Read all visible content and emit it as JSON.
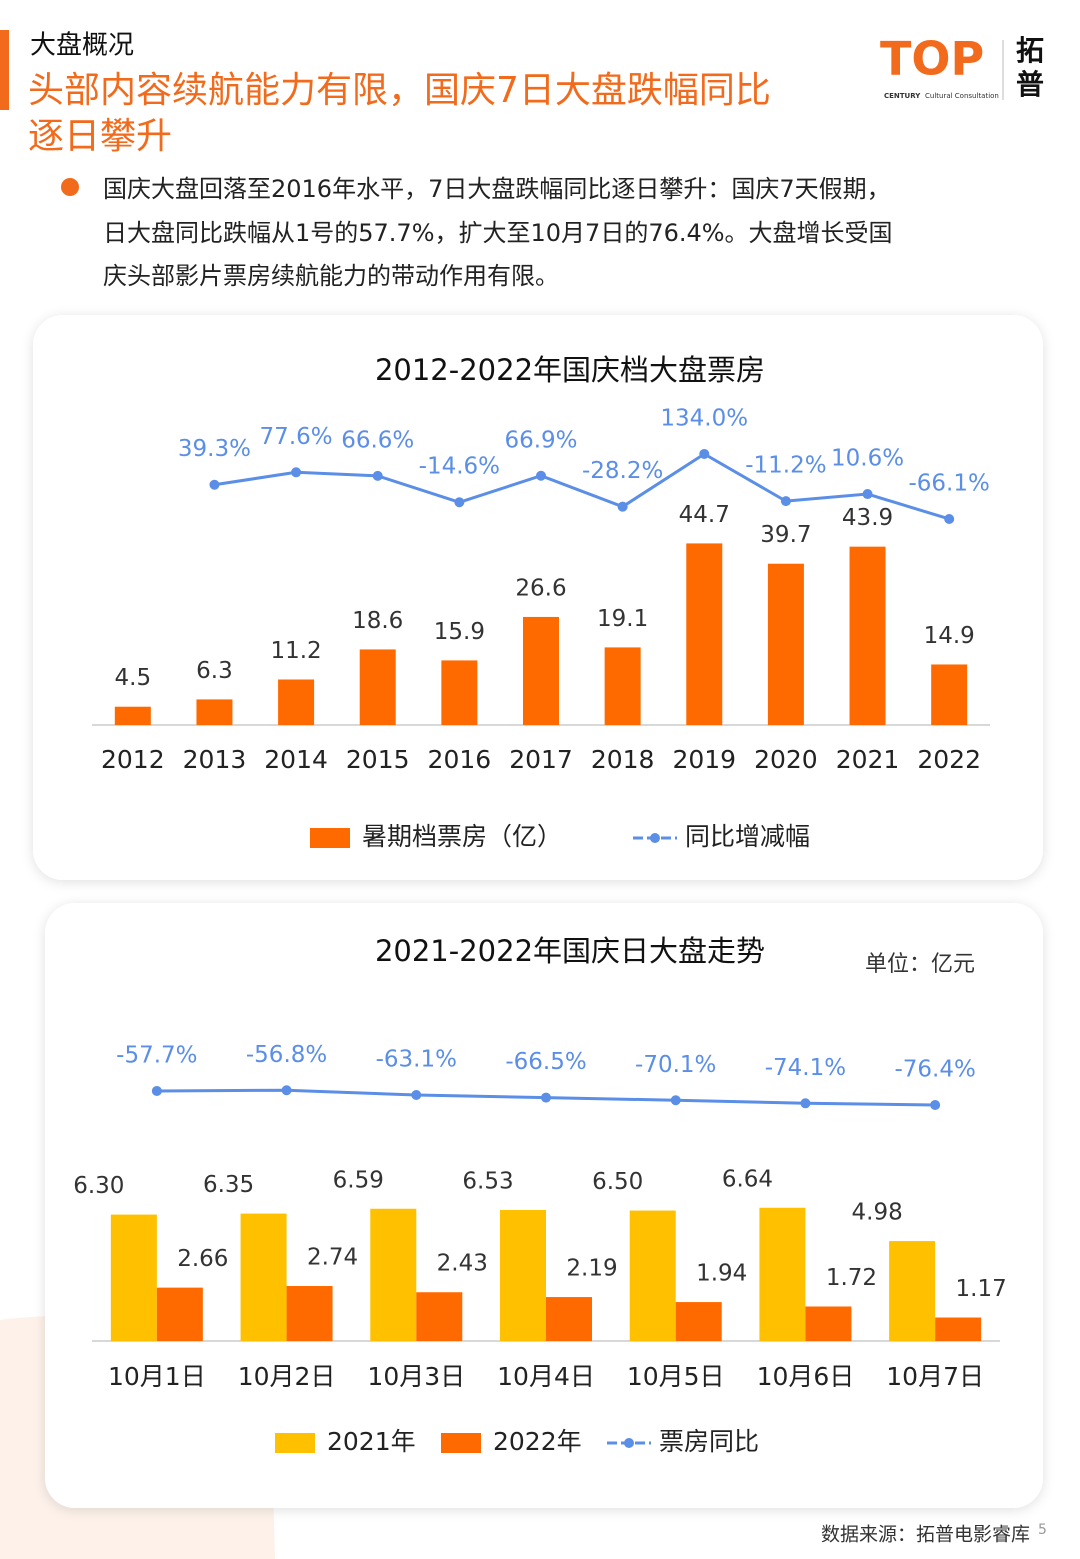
{
  "header": {
    "section": "大盘概况",
    "title_lines": [
      "头部内容续航能力有限，国庆7日大盘跌幅同比",
      "逐日攀升"
    ],
    "bullet_lines": [
      "国庆大盘回落至2016年水平，7日大盘跌幅同比逐日攀升：国庆7天假期，",
      "日大盘同比跌幅从1号的57.7%，扩大至10月7日的76.4%。大盘增长受国",
      "庆头部影片票房续航能力的带动作用有限。"
    ]
  },
  "logo": {
    "mark": "TOP",
    "name_lines": [
      "拓",
      "普"
    ],
    "tagline": "CENTURY",
    "tagline2": "Cultural Consultation"
  },
  "footer": {
    "source": "数据来源：拓普电影睿库",
    "page": 5
  },
  "chart_data": [
    {
      "type": "bar",
      "title": "2012-2022年国庆档大盘票房",
      "categories": [
        "2012",
        "2013",
        "2014",
        "2015",
        "2016",
        "2017",
        "2018",
        "2019",
        "2020",
        "2021",
        "2022"
      ],
      "series": [
        {
          "name": "暑期档票房（亿）",
          "type": "bar",
          "color": "#ff6a00",
          "values": [
            4.5,
            6.3,
            11.2,
            18.6,
            15.9,
            26.6,
            19.1,
            44.7,
            39.7,
            43.9,
            14.9
          ]
        },
        {
          "name": "同比增减幅",
          "type": "line",
          "axis": "y2",
          "color": "#5b8ee6",
          "values": [
            null,
            39.3,
            77.6,
            66.6,
            -14.6,
            66.9,
            -28.2,
            134.0,
            -11.2,
            10.6,
            -66.1
          ],
          "value_labels": [
            null,
            "39.3%",
            "77.6%",
            "66.6%",
            "-14.6%",
            "66.9%",
            "-28.2%",
            "134.0%",
            "-11.2%",
            "10.6%",
            "-66.1%"
          ]
        }
      ],
      "ylim": [
        0,
        80
      ],
      "y2lim": [
        -700,
        300
      ],
      "legend": "bottom"
    },
    {
      "type": "bar",
      "title": "2021-2022年国庆日大盘走势",
      "note": "单位：亿元",
      "categories": [
        "10月1日",
        "10月2日",
        "10月3日",
        "10月4日",
        "10月5日",
        "10月6日",
        "10月7日"
      ],
      "series": [
        {
          "name": "2021年",
          "type": "bar",
          "color": "#ffc000",
          "values": [
            6.3,
            6.35,
            6.59,
            6.53,
            6.5,
            6.64,
            4.98
          ],
          "value_labels": [
            "6.30",
            "6.35",
            "6.59",
            "6.53",
            "6.50",
            "6.64",
            "4.98"
          ]
        },
        {
          "name": "2022年",
          "type": "bar",
          "color": "#ff6a00",
          "values": [
            2.66,
            2.74,
            2.43,
            2.19,
            1.94,
            1.72,
            1.17
          ]
        },
        {
          "name": "票房同比",
          "type": "line",
          "axis": "y2",
          "color": "#5b8ee6",
          "values": [
            -57.7,
            -56.8,
            -63.1,
            -66.5,
            -70.1,
            -74.1,
            -76.4
          ],
          "value_labels": [
            "-57.7%",
            "-56.8%",
            "-63.1%",
            "-66.5%",
            "-70.1%",
            "-74.1%",
            "-76.4%"
          ]
        }
      ],
      "ylim": [
        0,
        15
      ],
      "y2lim": [
        -390,
        10
      ],
      "legend": "bottom"
    }
  ]
}
